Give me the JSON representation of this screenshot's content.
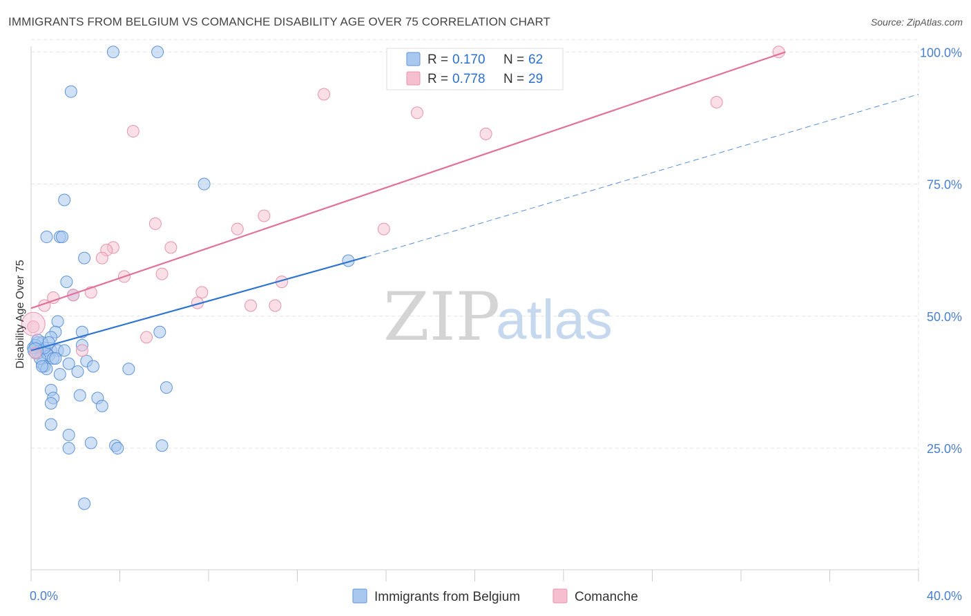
{
  "title": "IMMIGRANTS FROM BELGIUM VS COMANCHE DISABILITY AGE OVER 75 CORRELATION CHART",
  "source": "Source: ZipAtlas.com",
  "watermark": {
    "part1": "ZIP",
    "part2": "atlas"
  },
  "colors": {
    "blue_fill": "#a9c8ef",
    "blue_stroke": "#5e93d8",
    "blue_line": "#2f74d0",
    "pink_fill": "#f6bfd0",
    "pink_stroke": "#e593ad",
    "pink_line": "#e0719a",
    "grid": "#e3e3e3",
    "tick_label": "#4a7fd0"
  },
  "legend": {
    "r_label": "R =",
    "n_label": "N =",
    "items": [
      {
        "r": "0.170",
        "n": "62"
      },
      {
        "r": "0.778",
        "n": "29"
      }
    ]
  },
  "chart_data": {
    "type": "scatter",
    "title": "IMMIGRANTS FROM BELGIUM VS COMANCHE DISABILITY AGE OVER 75 CORRELATION CHART",
    "xlabel": "",
    "ylabel": "Disability Age Over 75",
    "xlim": [
      0,
      40
    ],
    "ylim": [
      2,
      102
    ],
    "x_tick_labels": [
      "0.0%",
      "40.0%"
    ],
    "y_ticks": [
      25,
      50,
      75,
      100
    ],
    "y_tick_labels": [
      "25.0%",
      "50.0%",
      "75.0%",
      "100.0%"
    ],
    "grid": true,
    "legend_position": "top-center",
    "series": [
      {
        "name": "Immigrants from Belgium",
        "color": "#a9c8ef",
        "points": [
          [
            3.7,
            100
          ],
          [
            5.7,
            100
          ],
          [
            1.8,
            92.5
          ],
          [
            7.8,
            75
          ],
          [
            1.5,
            72
          ],
          [
            0.7,
            65
          ],
          [
            1.3,
            65
          ],
          [
            1.4,
            65
          ],
          [
            2.4,
            61
          ],
          [
            14.3,
            60.5
          ],
          [
            1.6,
            56.5
          ],
          [
            1.9,
            54
          ],
          [
            1.2,
            49
          ],
          [
            1.1,
            47
          ],
          [
            2.3,
            47
          ],
          [
            5.8,
            47
          ],
          [
            0.9,
            46
          ],
          [
            0.3,
            45
          ],
          [
            0.5,
            45
          ],
          [
            2.3,
            44.5
          ],
          [
            0.2,
            44
          ],
          [
            0.4,
            43.5
          ],
          [
            0.6,
            43.5
          ],
          [
            0.9,
            43.5
          ],
          [
            1.2,
            43.5
          ],
          [
            0.3,
            43
          ],
          [
            0.7,
            43
          ],
          [
            0.8,
            42.5
          ],
          [
            1.0,
            42
          ],
          [
            2.5,
            41.5
          ],
          [
            0.5,
            41
          ],
          [
            1.7,
            41
          ],
          [
            0.6,
            40.5
          ],
          [
            0.7,
            40
          ],
          [
            2.8,
            40.5
          ],
          [
            4.4,
            40
          ],
          [
            1.3,
            39
          ],
          [
            2.1,
            39.5
          ],
          [
            0.9,
            36
          ],
          [
            6.1,
            36.5
          ],
          [
            2.2,
            35
          ],
          [
            3.0,
            34.5
          ],
          [
            1.0,
            34.5
          ],
          [
            3.2,
            33
          ],
          [
            0.9,
            33.5
          ],
          [
            0.9,
            29.5
          ],
          [
            1.7,
            27.5
          ],
          [
            2.7,
            26
          ],
          [
            3.8,
            25.5
          ],
          [
            3.9,
            25
          ],
          [
            1.7,
            25
          ],
          [
            5.9,
            25.5
          ],
          [
            2.4,
            14.5
          ],
          [
            0.1,
            44
          ],
          [
            0.2,
            44.5
          ],
          [
            0.4,
            42
          ],
          [
            0.6,
            44
          ],
          [
            0.5,
            40.5
          ],
          [
            1.5,
            43.5
          ],
          [
            0.3,
            45.5
          ],
          [
            0.8,
            45
          ],
          [
            1.1,
            42
          ]
        ]
      },
      {
        "name": "Comanche",
        "color": "#f6bfd0",
        "points": [
          [
            33.7,
            100
          ],
          [
            13.2,
            92
          ],
          [
            17.4,
            88.5
          ],
          [
            20.5,
            84.5
          ],
          [
            30.9,
            90.5
          ],
          [
            4.6,
            85
          ],
          [
            5.6,
            67.5
          ],
          [
            9.3,
            66.5
          ],
          [
            10.5,
            69
          ],
          [
            15.9,
            66.5
          ],
          [
            3.7,
            63
          ],
          [
            3.4,
            62.5
          ],
          [
            6.3,
            63
          ],
          [
            3.2,
            61
          ],
          [
            4.2,
            57.5
          ],
          [
            5.9,
            58
          ],
          [
            11.3,
            56.5
          ],
          [
            7.7,
            54.5
          ],
          [
            2.7,
            54.5
          ],
          [
            1.9,
            54
          ],
          [
            1.0,
            53.5
          ],
          [
            7.5,
            52.5
          ],
          [
            9.9,
            52
          ],
          [
            11.0,
            52
          ],
          [
            0.6,
            52
          ],
          [
            0.1,
            48
          ],
          [
            5.2,
            46
          ],
          [
            2.3,
            43.5
          ],
          [
            0.2,
            43
          ]
        ]
      }
    ],
    "trend_lines": [
      {
        "series": "Immigrants from Belgium",
        "from": [
          0,
          43.5
        ],
        "to": [
          15.1,
          61.2
        ],
        "dashed_extension_to": [
          40,
          92
        ]
      },
      {
        "series": "Comanche",
        "from": [
          0,
          51.5
        ],
        "to": [
          34.0,
          100
        ]
      }
    ]
  }
}
